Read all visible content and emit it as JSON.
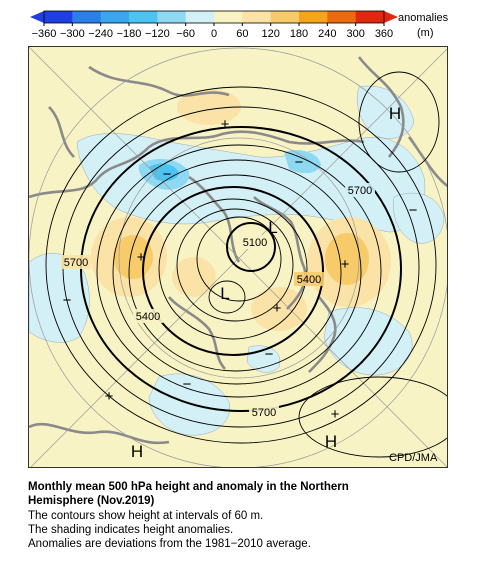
{
  "colorbar": {
    "ticks": [
      "−360",
      "−300",
      "−240",
      "−180",
      "−120",
      "−60",
      "0",
      "60",
      "120",
      "180",
      "240",
      "300",
      "360"
    ],
    "unit_label": "anomalies",
    "unit": "(m)",
    "colors": [
      "#1f3fe0",
      "#2a7fe8",
      "#3aa6ee",
      "#4cc4f2",
      "#8ed8f2",
      "#d2f0f6",
      "#f8f3c4",
      "#fbe3a8",
      "#f8cb6a",
      "#f4a51c",
      "#ea6a10",
      "#e02810"
    ]
  },
  "map": {
    "contour_labels": [
      "5700",
      "5100",
      "5400",
      "5400",
      "5700",
      "5700"
    ],
    "pressure_centers": [
      "H",
      "H",
      "H",
      "L",
      "L"
    ],
    "anomaly_signs": [
      "+",
      "+",
      "+",
      "+",
      "+",
      "+",
      "−",
      "−",
      "−",
      "−",
      "−",
      "−"
    ],
    "credit": "CPD/JMA",
    "colors": {
      "background": "#f8f3c4",
      "land": "#8a8a8a",
      "contour": "#000000",
      "negative": "#d2f0f6",
      "positive": "#f8cb6a"
    }
  },
  "caption": {
    "title_line1": "Monthly mean 500 hPa height and anomaly in the Northern",
    "title_line2": "Hemisphere (Nov.2019)",
    "line1": "The contours show height at intervals of 60 m.",
    "line2": "The shading indicates height anomalies.",
    "line3": "Anomalies are deviations from the 1981−2010 average."
  }
}
